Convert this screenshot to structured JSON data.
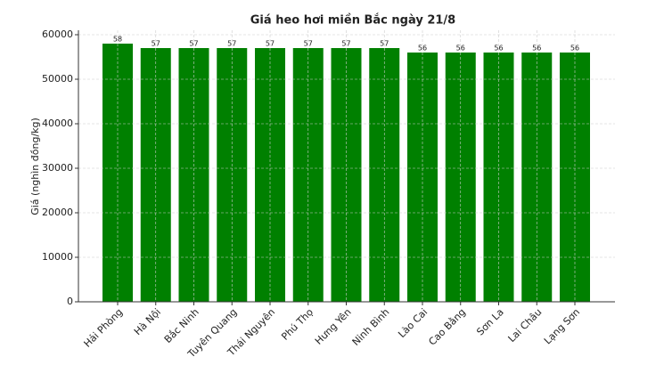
{
  "chart_data": {
    "type": "bar",
    "title": "Giá heo hơi miền Bắc ngày 21/8",
    "ylabel": "Giá (nghìn đồng/kg)",
    "categories": [
      "Hải Phòng",
      "Hà Nội",
      "Bắc Ninh",
      "Tuyên Quang",
      "Thái Nguyên",
      "Phú Thọ",
      "Hưng Yên",
      "Ninh Bình",
      "Lào Cai",
      "Cao Bằng",
      "Sơn La",
      "Lai Châu",
      "Lạng Sơn"
    ],
    "values": [
      58000,
      57000,
      57000,
      57000,
      57000,
      57000,
      57000,
      57000,
      56000,
      56000,
      56000,
      56000,
      56000
    ],
    "value_labels": [
      "58",
      "57",
      "57",
      "57",
      "57",
      "57",
      "57",
      "57",
      "56",
      "56",
      "56",
      "56",
      "56"
    ],
    "color": "#008000",
    "ylim": [
      0,
      61000
    ],
    "yticks": [
      0,
      10000,
      20000,
      30000,
      40000,
      50000,
      60000
    ],
    "grid": true
  }
}
